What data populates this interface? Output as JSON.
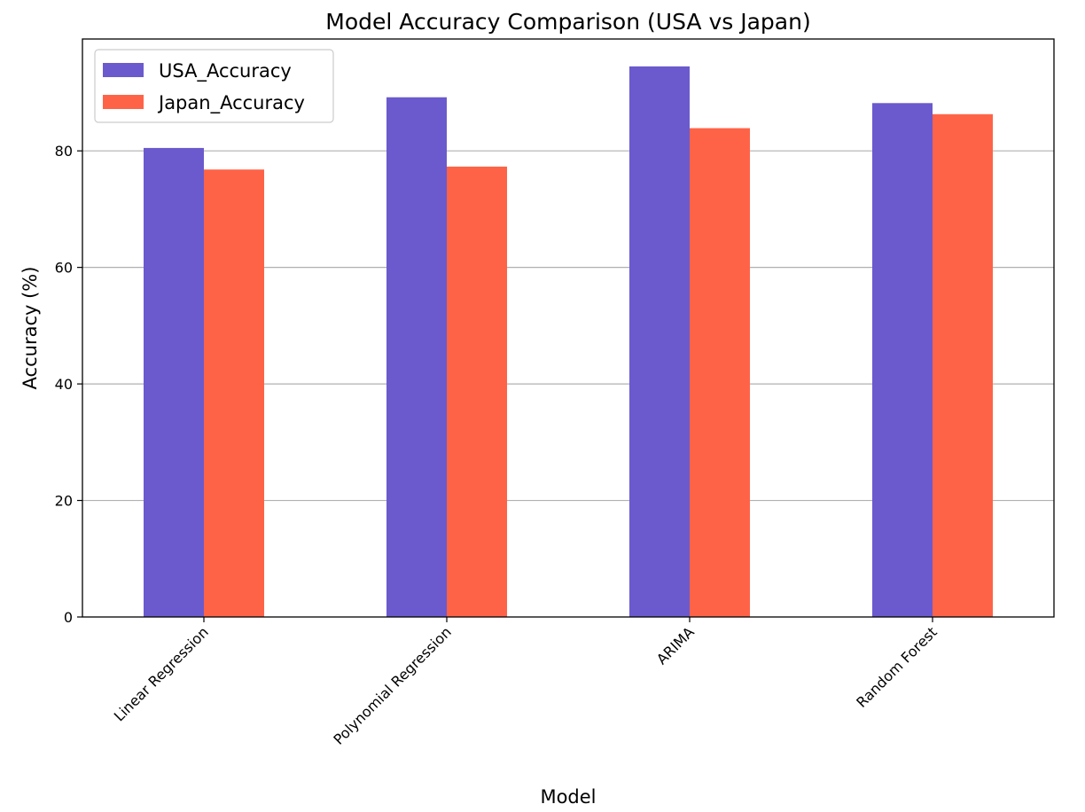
{
  "chart_data": {
    "type": "bar",
    "title": "Model Accuracy Comparison (USA vs Japan)",
    "xlabel": "Model",
    "ylabel": "Accuracy (%)",
    "categories": [
      "Linear Regression",
      "Polynomial Regression",
      "ARIMA",
      "Random Forest"
    ],
    "series": [
      {
        "name": "USA_Accuracy",
        "color": "#6A5ACD",
        "values": [
          80.5,
          89.2,
          94.5,
          88.2
        ]
      },
      {
        "name": "Japan_Accuracy",
        "color": "#FF6347",
        "values": [
          76.8,
          77.3,
          83.9,
          86.3
        ]
      }
    ],
    "ylim": [
      0,
      99.2
    ],
    "yticks": [
      0,
      20,
      40,
      60,
      80
    ],
    "grid": "horizontal",
    "legend_position": "top-left",
    "xtick_rotation": 45
  }
}
